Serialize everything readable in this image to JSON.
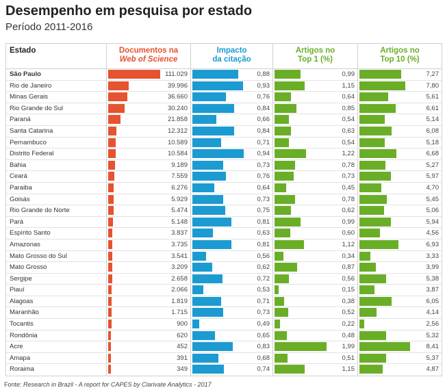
{
  "title": "Desempenho em pesquisa por estado",
  "subtitle": "Período 2011-2016",
  "footer_prefix": "Fonte: ",
  "footer_source": "Research in Brazil - A report for CAPES by Clarivate Analytics - 2017",
  "colors": {
    "documentos": "#e5532f",
    "impacto": "#1b9bd1",
    "top1": "#6aae27",
    "top10": "#6aae27",
    "header_docs": "#e5532f",
    "header_impact": "#1b9bd1",
    "header_top": "#6aae27"
  },
  "chart_data": {
    "type": "table",
    "headers": {
      "estado": "Estado",
      "documentos_1": "Documentos na",
      "documentos_2": "Web of Science",
      "impacto_1": "Impacto",
      "impacto_2": "da citação",
      "top1_1": "Artigos no",
      "top1_2": "Top 1 (%)",
      "top10_1": "Artigos no",
      "top10_2": "Top 10 (%)"
    },
    "rows": [
      [
        "São Paulo",
        "111.029",
        "0,88",
        "0,99",
        "7,27"
      ],
      [
        "Rio de Janeiro",
        "39.996",
        "0,93",
        "1,15",
        "7,80"
      ],
      [
        "Minas Gerais",
        "36.660",
        "0,76",
        "0,64",
        "5,61"
      ],
      [
        "Rio Grande do Sul",
        "30.240",
        "0,84",
        "0,85",
        "6,61"
      ],
      [
        "Paraná",
        "21.858",
        "0,66",
        "0,54",
        "5,14"
      ],
      [
        "Santa Catarina",
        "12.312",
        "0,84",
        "0,63",
        "6,08"
      ],
      [
        "Pernambuco",
        "10.589",
        "0,71",
        "0,54",
        "5,18"
      ],
      [
        "Distrito Federal",
        "10.584",
        "0,94",
        "1,22",
        "6,68"
      ],
      [
        "Bahia",
        "9.189",
        "0,73",
        "0,78",
        "5,27"
      ],
      [
        "Ceará",
        "7.559",
        "0,76",
        "0,73",
        "5,97"
      ],
      [
        "Paraiba",
        "6.276",
        "0,64",
        "0,45",
        "4,70"
      ],
      [
        "Goisás",
        "5.929",
        "0,73",
        "0,78",
        "5,45"
      ],
      [
        "Rio Grande do Norte",
        "5.474",
        "0,75",
        "0,62",
        "5,06"
      ],
      [
        "Pará",
        "5.148",
        "0,81",
        "0,99",
        "5,94"
      ],
      [
        "Espírito Santo",
        "3.837",
        "0,63",
        "0,60",
        "4,56"
      ],
      [
        "Amazonas",
        "3.735",
        "0,81",
        "1,12",
        "6,93"
      ],
      [
        "Mato Grosso do Sul",
        "3.541",
        "0,56",
        "0,34",
        "3,33"
      ],
      [
        "Mato Grosso",
        "3.209",
        "0,62",
        "0,87",
        "3,99"
      ],
      [
        "Sergipe",
        "2.658",
        "0,72",
        "0,56",
        "5,38"
      ],
      [
        "Piauí",
        "2.066",
        "0,53",
        "0,15",
        "3,87"
      ],
      [
        "Alagoas",
        "1.819",
        "0,71",
        "0,38",
        "6,05"
      ],
      [
        "Maranhão",
        "1.715",
        "0,73",
        "0,52",
        "4,14"
      ],
      [
        "Tocantis",
        "900",
        "0,49",
        "0,22",
        "2,56"
      ],
      [
        "Rondônia",
        "620",
        "0,65",
        "0,48",
        "5,32"
      ],
      [
        "Acre",
        "452",
        "0,83",
        "1,99",
        "8,41"
      ],
      [
        "Amapa",
        "391",
        "0,68",
        "0,51",
        "5,37"
      ],
      [
        "Roraima",
        "349",
        "0,74",
        "1,15",
        "4,87"
      ]
    ]
  }
}
